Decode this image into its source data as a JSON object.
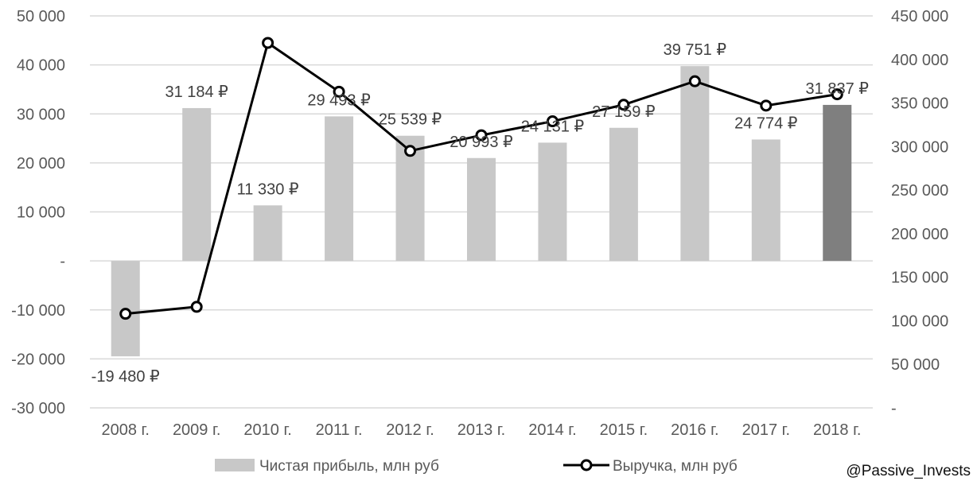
{
  "chart_data": {
    "type": "bar+line",
    "categories": [
      "2008 г.",
      "2009 г.",
      "2010 г.",
      "2011 г.",
      "2012 г.",
      "2013 г.",
      "2014 г.",
      "2015 г.",
      "2016 г.",
      "2017 г.",
      "2018 г."
    ],
    "series": [
      {
        "name": "Чистая прибыль, млн руб",
        "type": "bar",
        "axis": "left",
        "values": [
          -19480,
          31184,
          11330,
          29493,
          25539,
          20993,
          24131,
          27159,
          39751,
          24774,
          31837
        ],
        "labels": [
          "-19 480 ₽",
          "31 184 ₽",
          "11 330 ₽",
          "29 493 ₽",
          "25 539 ₽",
          "20 993 ₽",
          "24 131 ₽",
          "27 159 ₽",
          "39 751 ₽",
          "24 774 ₽",
          "31 837 ₽"
        ],
        "color": "#c8c8c8",
        "highlight_last_color": "#7f7f7f"
      },
      {
        "name": "Выручка, млн руб",
        "type": "line",
        "axis": "right",
        "values": [
          108000,
          116000,
          419000,
          363000,
          295000,
          313000,
          329000,
          348000,
          375000,
          347000,
          360000
        ],
        "color": "#000000"
      }
    ],
    "left_axis": {
      "ylim": [
        -30000,
        50000
      ],
      "ticks": [
        50000,
        40000,
        30000,
        20000,
        10000,
        0,
        -10000,
        -20000,
        -30000
      ],
      "tick_labels": [
        "50 000",
        "40 000",
        "30 000",
        "20 000",
        "10 000",
        "-",
        "-10 000",
        "-20 000",
        "-30 000"
      ]
    },
    "right_axis": {
      "ylim": [
        0,
        450000
      ],
      "ticks": [
        450000,
        400000,
        350000,
        300000,
        250000,
        200000,
        150000,
        100000,
        50000,
        0
      ],
      "tick_labels": [
        "450 000",
        "400 000",
        "350 000",
        "300 000",
        "250 000",
        "200 000",
        "150 000",
        "100 000",
        "50 000",
        "-"
      ]
    },
    "grid": true,
    "legend": "bottom"
  },
  "watermark": "@Passive_Invests"
}
